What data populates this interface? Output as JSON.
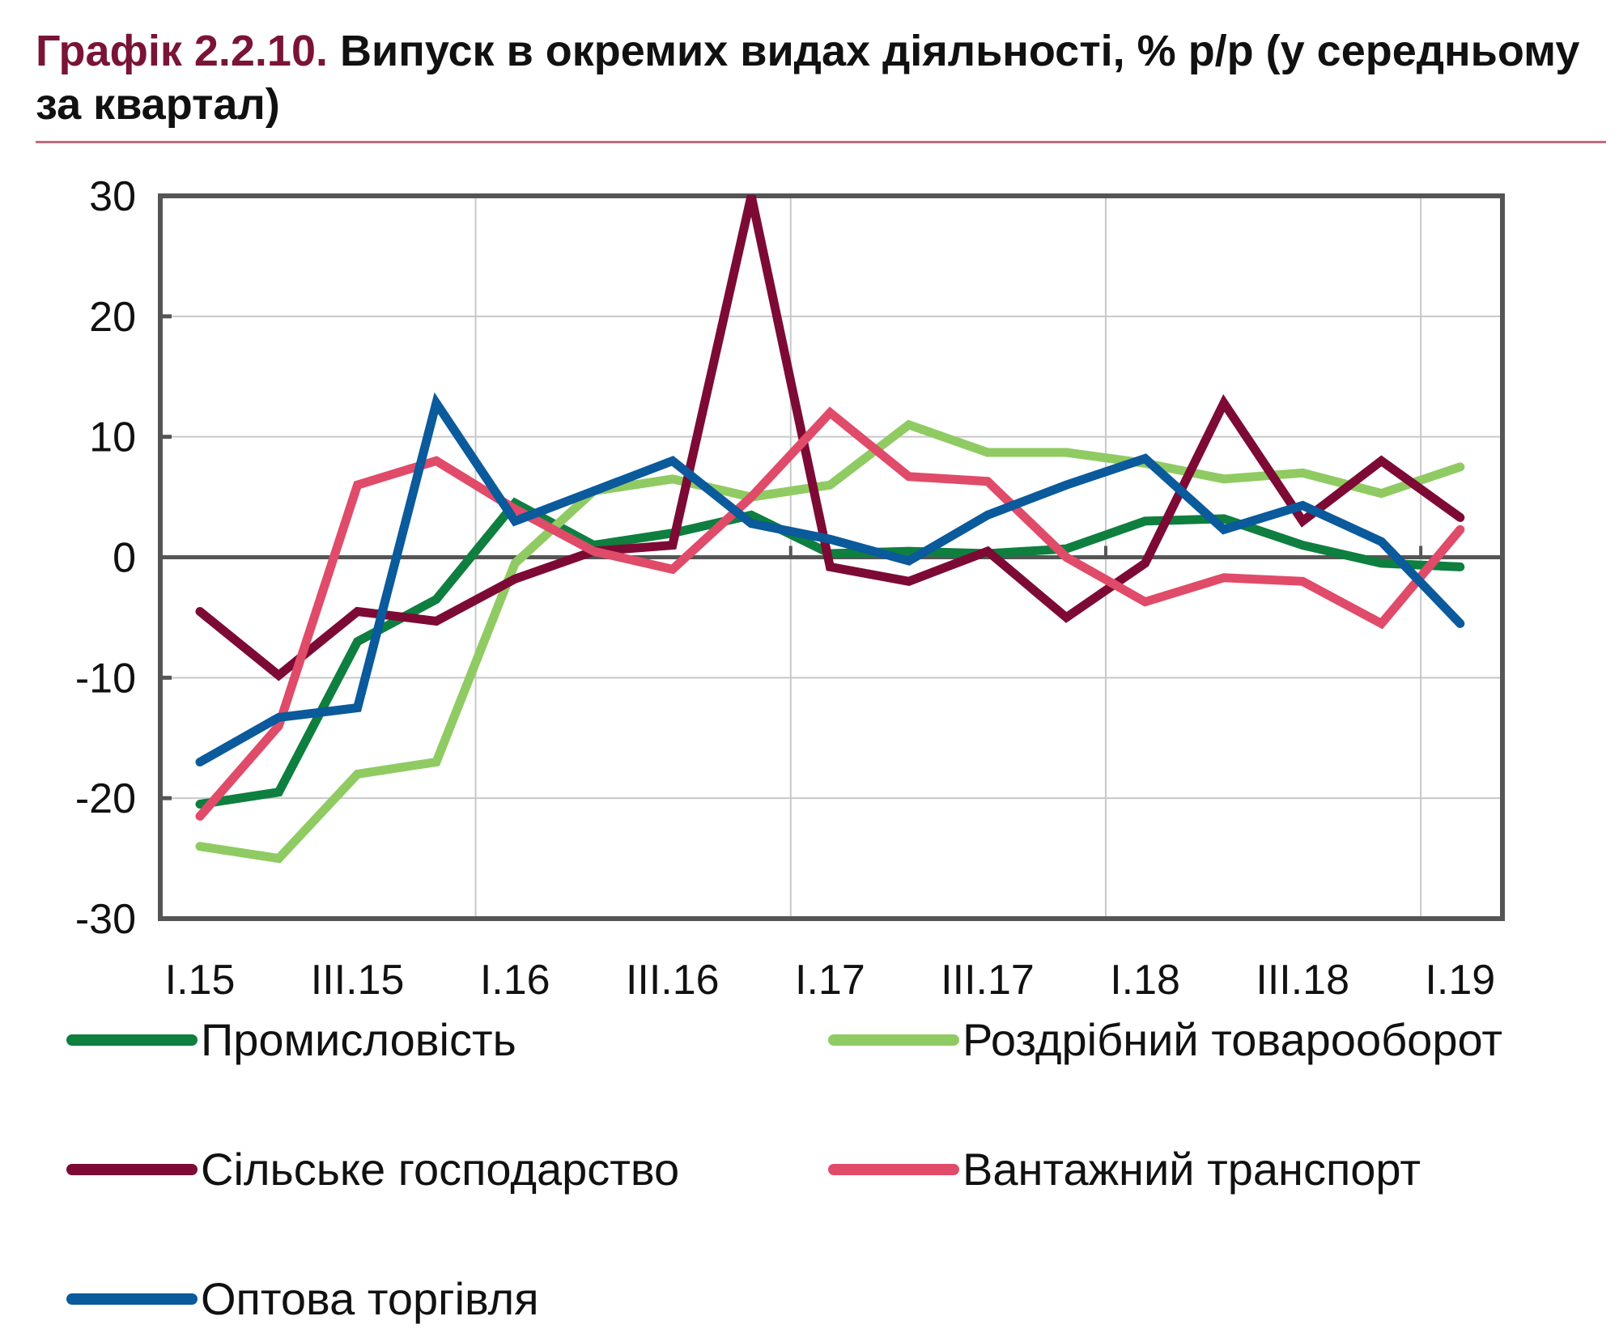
{
  "header": {
    "figure_number": "Графік 2.2.10.",
    "title": "Випуск в окремих видах діяльності, % р/р (у середньому за квартал)"
  },
  "colors": {
    "title_accent": "#7a1437",
    "rule": "#c8697f",
    "axis": "#555555",
    "grid": "#c8c8c8"
  },
  "chart_data": {
    "type": "line",
    "title": "Графік 2.2.10. Випуск в окремих видах діяльності, % р/р (у середньому за квартал)",
    "xlabel": "",
    "ylabel": "",
    "ylim": [
      -30,
      30
    ],
    "yticks": [
      30,
      20,
      10,
      0,
      -10,
      -20,
      -30
    ],
    "x": [
      "I.15",
      "II.15",
      "III.15",
      "IV.15",
      "I.16",
      "II.16",
      "III.16",
      "IV.16",
      "I.17",
      "II.17",
      "III.17",
      "IV.17",
      "I.18",
      "II.18",
      "III.18",
      "IV.18",
      "I.19"
    ],
    "xtick_labels": [
      "I.15",
      "III.15",
      "I.16",
      "III.16",
      "I.17",
      "III.17",
      "I.18",
      "III.18",
      "I.19"
    ],
    "grid": true,
    "legend_position": "bottom",
    "series": [
      {
        "name": "Промисловість",
        "color": "#0e7f3f",
        "values": [
          -20.5,
          -19.5,
          -7,
          -3.5,
          4.5,
          1,
          2,
          3.5,
          0.3,
          0.5,
          0.3,
          0.7,
          3,
          3.2,
          1,
          -0.5,
          -0.8
        ]
      },
      {
        "name": "Роздрібний товарооборот",
        "color": "#8fcb62",
        "values": [
          -24,
          -25,
          -18,
          -17,
          -0.5,
          5.5,
          6.5,
          5,
          6,
          11,
          8.7,
          8.7,
          7.8,
          6.5,
          7,
          5.3,
          7.5
        ]
      },
      {
        "name": "Сільське господарство",
        "color": "#7d0a35",
        "values": [
          -4.5,
          -9.8,
          -4.5,
          -5.3,
          -1.8,
          0.5,
          1,
          30,
          -0.8,
          -2,
          0.5,
          -5,
          -0.5,
          12.8,
          3,
          8,
          3.3
        ]
      },
      {
        "name": "Вантажний транспорт",
        "color": "#e04b69",
        "values": [
          -21.5,
          -14,
          6,
          8,
          4,
          0.5,
          -1,
          5,
          12,
          6.7,
          6.3,
          0,
          -3.7,
          -1.7,
          -2,
          -5.5,
          2.3
        ]
      },
      {
        "name": "Оптова торгівля",
        "color": "#0a5a9c",
        "values": [
          -17,
          -13.3,
          -12.5,
          12.8,
          3,
          5.5,
          8,
          2.8,
          1.5,
          -0.3,
          3.5,
          6,
          8.2,
          2.3,
          4.3,
          1.3,
          -5.5
        ]
      }
    ]
  }
}
